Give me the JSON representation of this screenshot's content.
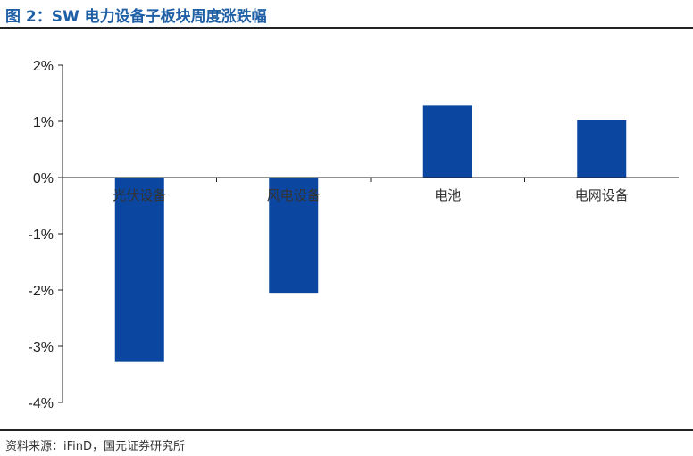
{
  "header": {
    "title": "图 2：SW 电力设备子板块周度涨跌幅"
  },
  "footer": {
    "source": "资料来源：iFinD，国元证券研究所"
  },
  "colors": {
    "bar": "#0b46a0",
    "accent": "#1f5fa6",
    "axis": "#222222"
  },
  "chart_data": {
    "type": "bar",
    "title": "",
    "xlabel": "",
    "ylabel": "",
    "categories": [
      "光伏设备",
      "风电设备",
      "电池",
      "电网设备"
    ],
    "values": [
      -3.28,
      -2.05,
      1.28,
      1.02
    ],
    "unit": "%",
    "ylim": [
      -4,
      2
    ],
    "yticks": [
      2,
      1,
      0,
      -1,
      -2,
      -3,
      -4
    ],
    "ytick_labels": [
      "2%",
      "1%",
      "0%",
      "-1%",
      "-2%",
      "-3%",
      "-4%"
    ],
    "grid": false,
    "legend": "none"
  }
}
